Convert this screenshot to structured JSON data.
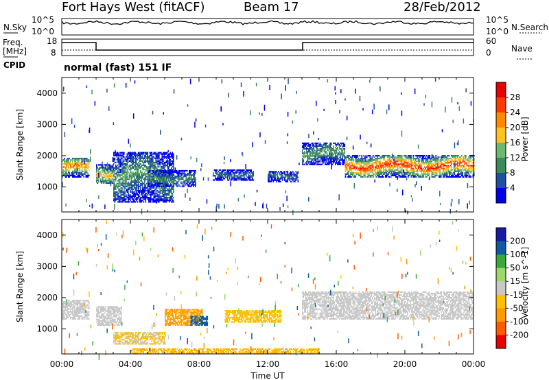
{
  "header": {
    "station": "Fort Hays West (fitACF)",
    "beam": "Beam 17",
    "date": "28/Feb/2012"
  },
  "noise_panel": {
    "left_label": "N.Sky",
    "right_label": "N.Search",
    "ticks_left": [
      "10^5",
      "10^0"
    ],
    "ticks_right": [
      "10^5",
      "10^0"
    ]
  },
  "freq_panel": {
    "left_label_1": "Freq.",
    "left_label_2": "[MHz]",
    "cpid_label": "CPID",
    "right_label": "Nave",
    "ticks_left": [
      "18",
      "8"
    ],
    "ticks_right": [
      "60",
      "0"
    ],
    "cpid_text": "normal (fast) 151 IF"
  },
  "colors": {
    "power": [
      "#0000ee",
      "#2050a0",
      "#3a8a5a",
      "#6db870",
      "#ffc21e",
      "#ff8a00",
      "#ff3a00",
      "#e60000"
    ],
    "velocity": [
      "#e60000",
      "#ff5a00",
      "#ff9a00",
      "#ffc000",
      "#c8c8c8",
      "#9bd96b",
      "#3aa83a",
      "#0f5aa0",
      "#1a1aa8"
    ],
    "ground_scatter": "#c8c8c8"
  },
  "chart_data": [
    {
      "type": "heatmap",
      "name": "power",
      "ylabel": "Slant Range [km]",
      "xlabel": "",
      "yticks": [
        "1000",
        "2000",
        "3000",
        "4000"
      ],
      "ylim": [
        200,
        4500
      ],
      "colorbar_label": "Power [dB]",
      "colorbar_ticks": [
        "28",
        "24",
        "20",
        "16",
        "12",
        "8",
        "4"
      ],
      "colorbar_range": [
        0,
        32
      ],
      "features": [
        {
          "t0": 0.0,
          "t1": 1.6,
          "r0": 1300,
          "r1": 1900,
          "peak": 24
        },
        {
          "t0": 2.0,
          "t1": 3.0,
          "r0": 1100,
          "r1": 1700,
          "peak": 20
        },
        {
          "t0": 3.0,
          "t1": 6.5,
          "r0": 500,
          "r1": 2100,
          "peak": 12
        },
        {
          "t0": 5.0,
          "t1": 7.8,
          "r0": 1000,
          "r1": 1500,
          "peak": 10
        },
        {
          "t0": 8.8,
          "t1": 11.2,
          "r0": 1200,
          "r1": 1550,
          "peak": 8
        },
        {
          "t0": 12.0,
          "t1": 13.8,
          "r0": 1150,
          "r1": 1500,
          "peak": 8
        },
        {
          "t0": 14.0,
          "t1": 16.5,
          "r0": 1700,
          "r1": 2400,
          "peak": 12
        },
        {
          "t0": 16.5,
          "t1": 24.0,
          "r0": 1300,
          "r1": 2000,
          "peak": 28
        }
      ]
    },
    {
      "type": "heatmap",
      "name": "velocity",
      "ylabel": "Slant Range [km]",
      "xlabel": "Time UT",
      "yticks": [
        "1000",
        "2000",
        "3000",
        "4000"
      ],
      "ylim": [
        200,
        4500
      ],
      "xticks": [
        "00:00",
        "04:00",
        "08:00",
        "12:00",
        "16:00",
        "20:00",
        "00:00"
      ],
      "colorbar_label": "Velocity [m s^-1]",
      "colorbar_ticks": [
        "200",
        "100",
        "50",
        "15",
        "-15",
        "-50",
        "-100",
        "-200"
      ],
      "features": [
        {
          "t0": 0.0,
          "t1": 1.6,
          "r0": 1300,
          "r1": 1900,
          "v": 0
        },
        {
          "t0": 2.0,
          "t1": 3.5,
          "r0": 1100,
          "r1": 1700,
          "v": 0
        },
        {
          "t0": 3.0,
          "t1": 6.0,
          "r0": 500,
          "r1": 900,
          "v": -15
        },
        {
          "t0": 6.0,
          "t1": 8.2,
          "r0": 1100,
          "r1": 1600,
          "v": -60
        },
        {
          "t0": 7.5,
          "t1": 8.5,
          "r0": 1100,
          "r1": 1400,
          "v": 180
        },
        {
          "t0": 9.5,
          "t1": 12.8,
          "r0": 1200,
          "r1": 1600,
          "v": -30
        },
        {
          "t0": 14.0,
          "t1": 24.0,
          "r0": 1300,
          "r1": 2200,
          "v": 0
        },
        {
          "t0": 4.0,
          "t1": 15.0,
          "r0": 200,
          "r1": 350,
          "v": -40
        }
      ]
    }
  ]
}
